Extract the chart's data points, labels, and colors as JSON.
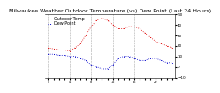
{
  "title": "Milwaukee Weather Outdoor Temperature (vs) Dew Point (Last 24 Hours)",
  "title_fontsize": 4.5,
  "background_color": "#ffffff",
  "grid_color": "#aaaaaa",
  "temp_color": "#dd0000",
  "dew_color": "#0000cc",
  "ylim": [
    -10,
    50
  ],
  "yticks": [
    -10,
    0,
    10,
    20,
    30,
    40,
    50
  ],
  "temp_values": [
    18,
    17,
    16,
    16,
    15,
    18,
    22,
    30,
    38,
    44,
    46,
    44,
    40,
    36,
    36,
    38,
    38,
    36,
    32,
    28,
    24,
    22,
    20,
    18
  ],
  "dew_values": [
    12,
    12,
    11,
    11,
    10,
    10,
    8,
    6,
    2,
    0,
    -2,
    -2,
    2,
    8,
    10,
    10,
    8,
    6,
    6,
    8,
    8,
    6,
    4,
    4
  ],
  "n_points": 24,
  "legend_fontsize": 3.5,
  "legend_labels": [
    "Outdoor Temp",
    "Dew Point"
  ],
  "x_tick_labels": [
    "0",
    "",
    "",
    "",
    "4",
    "",
    "",
    "",
    "8",
    "",
    "",
    "",
    "12",
    "",
    "",
    "",
    "16",
    "",
    "",
    "",
    "20",
    "",
    "",
    ""
  ],
  "grid_positions": [
    0,
    4,
    8,
    12,
    16,
    20
  ]
}
